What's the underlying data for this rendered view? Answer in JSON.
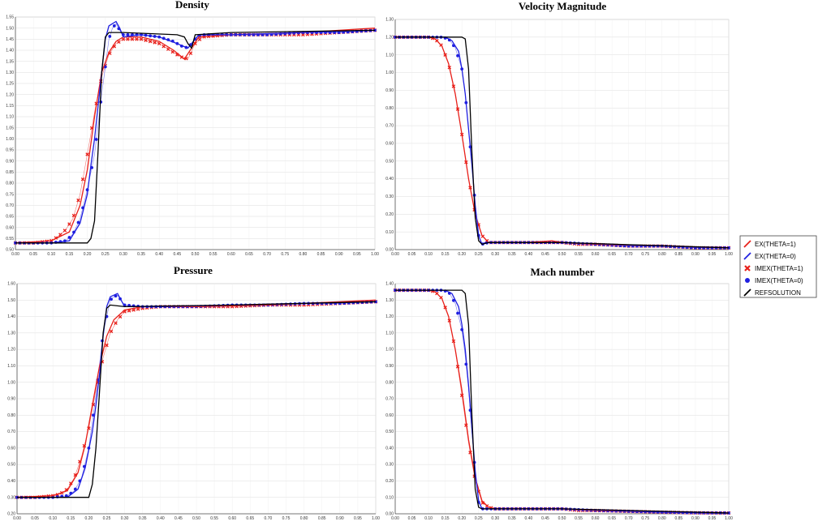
{
  "colors": {
    "EX(THETA=1)": "#e8201a",
    "EX(THETA=0)": "#1f1fe0",
    "IMEX(THETA=1)": "#e8201a",
    "IMEX(THETA=0)": "#1f1fe0",
    "REFSOLUTION": "#000000"
  },
  "legend": {
    "placement": "right",
    "entries": [
      {
        "label": "EX(THETA=1)",
        "icon": "red-slash-icon"
      },
      {
        "label": "EX(THETA=0)",
        "icon": "blue-slash-icon"
      },
      {
        "label": "IMEX(THETA=1)",
        "icon": "red-cross-marker-icon"
      },
      {
        "label": "IMEX(THETA=0)",
        "icon": "blue-dot-marker-icon"
      },
      {
        "label": "REFSOLUTION",
        "icon": "black-slash-icon"
      }
    ]
  },
  "chart_data": [
    {
      "type": "line",
      "title": "Density",
      "xlim": [
        0,
        1
      ],
      "ylim": [
        0.5,
        1.55
      ],
      "xticks": [
        "0.00",
        "0.05",
        "0.10",
        "0.15",
        "0.20",
        "0.25",
        "0.30",
        "0.35",
        "0.40",
        "0.45",
        "0.50",
        "0.55",
        "0.60",
        "0.65",
        "0.70",
        "0.75",
        "0.80",
        "0.85",
        "0.90",
        "0.95",
        "1.00"
      ],
      "yticks": [
        "0.50",
        "0.55",
        "0.60",
        "0.65",
        "0.70",
        "0.75",
        "0.80",
        "0.85",
        "0.90",
        "0.95",
        "1.00",
        "1.05",
        "1.10",
        "1.15",
        "1.20",
        "1.25",
        "1.30",
        "1.35",
        "1.40",
        "1.45",
        "1.50",
        "1.55"
      ],
      "grid": true,
      "series": [
        {
          "name": "EX(THETA=1)",
          "x": [
            0,
            0.1,
            0.15,
            0.18,
            0.2,
            0.22,
            0.24,
            0.26,
            0.28,
            0.3,
            0.35,
            0.4,
            0.44,
            0.47,
            0.49,
            0.51,
            0.6,
            0.8,
            1.0
          ],
          "y": [
            0.53,
            0.54,
            0.58,
            0.7,
            0.86,
            1.1,
            1.3,
            1.39,
            1.44,
            1.46,
            1.46,
            1.44,
            1.4,
            1.36,
            1.41,
            1.46,
            1.47,
            1.48,
            1.5
          ]
        },
        {
          "name": "EX(THETA=0)",
          "x": [
            0,
            0.1,
            0.15,
            0.18,
            0.2,
            0.21,
            0.22,
            0.23,
            0.24,
            0.25,
            0.26,
            0.27,
            0.28,
            0.29,
            0.3,
            0.35,
            0.4,
            0.45,
            0.48,
            0.5,
            0.51,
            0.6,
            0.8,
            1.0
          ],
          "y": [
            0.53,
            0.53,
            0.54,
            0.62,
            0.75,
            0.88,
            1.0,
            1.15,
            1.3,
            1.45,
            1.51,
            1.52,
            1.53,
            1.5,
            1.46,
            1.47,
            1.46,
            1.43,
            1.41,
            1.45,
            1.47,
            1.47,
            1.48,
            1.49
          ]
        },
        {
          "name": "IMEX(THETA=1)",
          "x": [
            0,
            0.05,
            0.1,
            0.12,
            0.14,
            0.16,
            0.18,
            0.2,
            0.22,
            0.24,
            0.26,
            0.28,
            0.3,
            0.35,
            0.4,
            0.42,
            0.44,
            0.46,
            0.48,
            0.5,
            0.52,
            0.6,
            0.7,
            0.8,
            0.9,
            1.0
          ],
          "y": [
            0.53,
            0.53,
            0.54,
            0.56,
            0.59,
            0.64,
            0.75,
            0.93,
            1.12,
            1.28,
            1.38,
            1.43,
            1.45,
            1.45,
            1.43,
            1.41,
            1.39,
            1.37,
            1.36,
            1.43,
            1.46,
            1.47,
            1.47,
            1.47,
            1.48,
            1.49
          ]
        },
        {
          "name": "IMEX(THETA=0)",
          "x": [
            0,
            0.05,
            0.1,
            0.14,
            0.16,
            0.18,
            0.2,
            0.22,
            0.24,
            0.26,
            0.27,
            0.28,
            0.29,
            0.3,
            0.35,
            0.4,
            0.44,
            0.46,
            0.48,
            0.5,
            0.52,
            0.6,
            0.7,
            0.8,
            0.9,
            1.0
          ],
          "y": [
            0.53,
            0.53,
            0.53,
            0.54,
            0.57,
            0.64,
            0.77,
            0.93,
            1.2,
            1.45,
            1.5,
            1.52,
            1.49,
            1.47,
            1.47,
            1.46,
            1.44,
            1.42,
            1.41,
            1.45,
            1.47,
            1.47,
            1.47,
            1.48,
            1.48,
            1.49
          ]
        },
        {
          "name": "REFSOLUTION",
          "x": [
            0,
            0.2,
            0.21,
            0.22,
            0.23,
            0.24,
            0.25,
            0.26,
            0.3,
            0.45,
            0.47,
            0.48,
            0.49,
            0.5,
            0.6,
            1.0
          ],
          "y": [
            0.53,
            0.53,
            0.55,
            0.63,
            0.95,
            1.3,
            1.46,
            1.48,
            1.48,
            1.47,
            1.46,
            1.43,
            1.41,
            1.47,
            1.48,
            1.49
          ]
        }
      ]
    },
    {
      "type": "line",
      "title": "Velocity Magnitude",
      "xlim": [
        0,
        1
      ],
      "ylim": [
        0,
        1.3
      ],
      "xticks": [
        "0.00",
        "0.05",
        "0.10",
        "0.15",
        "0.20",
        "0.25",
        "0.30",
        "0.35",
        "0.40",
        "0.45",
        "0.50",
        "0.55",
        "0.60",
        "0.65",
        "0.70",
        "0.75",
        "0.80",
        "0.85",
        "0.90",
        "0.95",
        "1.00"
      ],
      "yticks": [
        "0.00",
        "0.10",
        "0.20",
        "0.30",
        "0.40",
        "0.50",
        "0.60",
        "0.70",
        "0.80",
        "0.90",
        "1.00",
        "1.10",
        "1.20",
        "1.30"
      ],
      "grid": true,
      "series": [
        {
          "name": "EX(THETA=1)",
          "x": [
            0,
            0.1,
            0.12,
            0.14,
            0.16,
            0.18,
            0.2,
            0.22,
            0.24,
            0.26,
            0.28,
            0.3,
            0.4,
            0.47,
            0.5,
            0.6,
            0.8,
            1.0
          ],
          "y": [
            1.2,
            1.2,
            1.19,
            1.15,
            1.05,
            0.88,
            0.65,
            0.4,
            0.2,
            0.08,
            0.04,
            0.04,
            0.04,
            0.05,
            0.04,
            0.03,
            0.02,
            0.01
          ]
        },
        {
          "name": "EX(THETA=0)",
          "x": [
            0,
            0.15,
            0.17,
            0.19,
            0.2,
            0.21,
            0.22,
            0.23,
            0.24,
            0.25,
            0.26,
            0.27,
            0.3,
            0.4,
            0.5,
            0.8,
            1.0
          ],
          "y": [
            1.2,
            1.2,
            1.18,
            1.12,
            1.02,
            0.88,
            0.68,
            0.48,
            0.25,
            0.08,
            0.03,
            0.04,
            0.04,
            0.04,
            0.04,
            0.02,
            0.01
          ]
        },
        {
          "name": "IMEX(THETA=1)",
          "x": [
            0,
            0.05,
            0.1,
            0.12,
            0.14,
            0.16,
            0.18,
            0.2,
            0.22,
            0.24,
            0.26,
            0.28,
            0.3,
            0.35,
            0.4,
            0.45,
            0.5,
            0.55,
            0.6,
            0.7,
            0.8,
            0.9,
            1.0
          ],
          "y": [
            1.2,
            1.2,
            1.2,
            1.19,
            1.15,
            1.05,
            0.88,
            0.65,
            0.4,
            0.2,
            0.08,
            0.04,
            0.04,
            0.04,
            0.04,
            0.04,
            0.04,
            0.03,
            0.03,
            0.02,
            0.02,
            0.01,
            0.01
          ]
        },
        {
          "name": "IMEX(THETA=0)",
          "x": [
            0,
            0.05,
            0.1,
            0.14,
            0.16,
            0.18,
            0.2,
            0.21,
            0.22,
            0.23,
            0.24,
            0.25,
            0.26,
            0.28,
            0.3,
            0.35,
            0.4,
            0.5,
            0.6,
            0.7,
            0.8,
            0.9,
            1.0
          ],
          "y": [
            1.2,
            1.2,
            1.2,
            1.2,
            1.19,
            1.14,
            1.02,
            0.88,
            0.68,
            0.48,
            0.25,
            0.08,
            0.03,
            0.04,
            0.04,
            0.04,
            0.04,
            0.04,
            0.03,
            0.02,
            0.02,
            0.01,
            0.01
          ]
        },
        {
          "name": "REFSOLUTION",
          "x": [
            0,
            0.2,
            0.21,
            0.22,
            0.23,
            0.24,
            0.25,
            0.26,
            0.28,
            0.3,
            0.5,
            1.0
          ],
          "y": [
            1.2,
            1.2,
            1.19,
            1.02,
            0.55,
            0.18,
            0.05,
            0.03,
            0.04,
            0.04,
            0.04,
            0.01
          ]
        }
      ]
    },
    {
      "type": "line",
      "title": "Pressure",
      "xlim": [
        0,
        1
      ],
      "ylim": [
        0.2,
        1.6
      ],
      "xticks": [
        "0.00",
        "0.05",
        "0.10",
        "0.15",
        "0.20",
        "0.25",
        "0.30",
        "0.35",
        "0.40",
        "0.45",
        "0.50",
        "0.55",
        "0.60",
        "0.65",
        "0.70",
        "0.75",
        "0.80",
        "0.85",
        "0.90",
        "0.95",
        "1.00"
      ],
      "yticks": [
        "0.20",
        "0.30",
        "0.40",
        "0.50",
        "0.60",
        "0.70",
        "0.80",
        "0.90",
        "1.00",
        "1.10",
        "1.20",
        "1.30",
        "1.40",
        "1.50",
        "1.60"
      ],
      "grid": true,
      "series": [
        {
          "name": "EX(THETA=1)",
          "x": [
            0,
            0.1,
            0.14,
            0.17,
            0.19,
            0.21,
            0.23,
            0.25,
            0.27,
            0.3,
            0.35,
            0.5,
            0.7,
            1.0
          ],
          "y": [
            0.3,
            0.31,
            0.34,
            0.45,
            0.62,
            0.86,
            1.1,
            1.28,
            1.38,
            1.44,
            1.46,
            1.46,
            1.47,
            1.5
          ]
        },
        {
          "name": "EX(THETA=0)",
          "x": [
            0,
            0.14,
            0.17,
            0.19,
            0.21,
            0.22,
            0.23,
            0.24,
            0.25,
            0.26,
            0.27,
            0.28,
            0.29,
            0.3,
            0.4,
            0.6,
            1.0
          ],
          "y": [
            0.3,
            0.3,
            0.35,
            0.48,
            0.7,
            0.86,
            1.05,
            1.28,
            1.46,
            1.52,
            1.53,
            1.54,
            1.5,
            1.46,
            1.46,
            1.47,
            1.49
          ]
        },
        {
          "name": "IMEX(THETA=1)",
          "x": [
            0,
            0.05,
            0.1,
            0.12,
            0.14,
            0.16,
            0.18,
            0.2,
            0.22,
            0.24,
            0.26,
            0.28,
            0.3,
            0.35,
            0.4,
            0.5,
            0.6,
            0.7,
            0.8,
            0.9,
            1.0
          ],
          "y": [
            0.3,
            0.3,
            0.31,
            0.32,
            0.35,
            0.42,
            0.55,
            0.72,
            0.95,
            1.15,
            1.3,
            1.38,
            1.43,
            1.45,
            1.46,
            1.46,
            1.46,
            1.47,
            1.47,
            1.48,
            1.49
          ]
        },
        {
          "name": "IMEX(THETA=0)",
          "x": [
            0,
            0.05,
            0.1,
            0.14,
            0.16,
            0.18,
            0.2,
            0.22,
            0.24,
            0.26,
            0.27,
            0.28,
            0.29,
            0.3,
            0.35,
            0.4,
            0.5,
            0.6,
            0.7,
            0.8,
            0.9,
            1.0
          ],
          "y": [
            0.3,
            0.3,
            0.3,
            0.31,
            0.34,
            0.42,
            0.6,
            0.92,
            1.3,
            1.5,
            1.52,
            1.53,
            1.5,
            1.47,
            1.46,
            1.46,
            1.46,
            1.47,
            1.47,
            1.48,
            1.48,
            1.49
          ]
        },
        {
          "name": "REFSOLUTION",
          "x": [
            0,
            0.2,
            0.21,
            0.22,
            0.23,
            0.24,
            0.25,
            0.26,
            0.3,
            0.6,
            1.0
          ],
          "y": [
            0.3,
            0.3,
            0.38,
            0.6,
            0.95,
            1.3,
            1.45,
            1.47,
            1.46,
            1.47,
            1.49
          ]
        }
      ]
    },
    {
      "type": "line",
      "title": "Mach number",
      "xlim": [
        0,
        1
      ],
      "ylim": [
        0,
        1.4
      ],
      "xticks": [
        "0.00",
        "0.05",
        "0.10",
        "0.15",
        "0.20",
        "0.25",
        "0.30",
        "0.35",
        "0.40",
        "0.45",
        "0.50",
        "0.55",
        "0.60",
        "0.65",
        "0.70",
        "0.75",
        "0.80",
        "0.85",
        "0.90",
        "0.95",
        "1.00"
      ],
      "yticks": [
        "0.00",
        "0.10",
        "0.20",
        "0.30",
        "0.40",
        "0.50",
        "0.60",
        "0.70",
        "0.80",
        "0.90",
        "1.00",
        "1.10",
        "1.20",
        "1.30",
        "1.40"
      ],
      "grid": true,
      "series": [
        {
          "name": "EX(THETA=1)",
          "x": [
            0,
            0.1,
            0.12,
            0.14,
            0.16,
            0.18,
            0.2,
            0.22,
            0.24,
            0.26,
            0.28,
            0.3,
            0.4,
            0.47,
            0.5,
            0.6,
            0.8,
            1.0
          ],
          "y": [
            1.36,
            1.36,
            1.35,
            1.31,
            1.2,
            1.0,
            0.75,
            0.45,
            0.22,
            0.08,
            0.04,
            0.03,
            0.03,
            0.03,
            0.03,
            0.02,
            0.01,
            0.005
          ]
        },
        {
          "name": "EX(THETA=0)",
          "x": [
            0,
            0.15,
            0.17,
            0.19,
            0.2,
            0.21,
            0.22,
            0.23,
            0.24,
            0.25,
            0.26,
            0.27,
            0.3,
            0.5,
            0.8,
            1.0
          ],
          "y": [
            1.36,
            1.36,
            1.34,
            1.26,
            1.15,
            1.0,
            0.78,
            0.52,
            0.26,
            0.08,
            0.03,
            0.03,
            0.03,
            0.03,
            0.01,
            0.005
          ]
        },
        {
          "name": "IMEX(THETA=1)",
          "x": [
            0,
            0.05,
            0.1,
            0.12,
            0.14,
            0.16,
            0.18,
            0.2,
            0.22,
            0.24,
            0.26,
            0.28,
            0.3,
            0.35,
            0.4,
            0.45,
            0.5,
            0.55,
            0.6,
            0.7,
            0.8,
            0.9,
            1.0
          ],
          "y": [
            1.36,
            1.36,
            1.36,
            1.35,
            1.31,
            1.2,
            1.0,
            0.72,
            0.43,
            0.2,
            0.07,
            0.04,
            0.03,
            0.03,
            0.03,
            0.03,
            0.03,
            0.02,
            0.02,
            0.015,
            0.01,
            0.006,
            0.005
          ]
        },
        {
          "name": "IMEX(THETA=0)",
          "x": [
            0,
            0.05,
            0.1,
            0.14,
            0.16,
            0.18,
            0.2,
            0.21,
            0.22,
            0.23,
            0.24,
            0.25,
            0.26,
            0.28,
            0.3,
            0.35,
            0.4,
            0.5,
            0.6,
            0.7,
            0.8,
            0.9,
            1.0
          ],
          "y": [
            1.36,
            1.36,
            1.36,
            1.36,
            1.35,
            1.28,
            1.12,
            0.96,
            0.76,
            0.5,
            0.25,
            0.07,
            0.03,
            0.03,
            0.03,
            0.03,
            0.03,
            0.03,
            0.02,
            0.015,
            0.01,
            0.006,
            0.005
          ]
        },
        {
          "name": "REFSOLUTION",
          "x": [
            0,
            0.2,
            0.21,
            0.22,
            0.23,
            0.24,
            0.25,
            0.26,
            0.28,
            0.3,
            0.5,
            1.0
          ],
          "y": [
            1.36,
            1.36,
            1.34,
            1.15,
            0.6,
            0.15,
            0.04,
            0.03,
            0.03,
            0.03,
            0.03,
            0.005
          ]
        }
      ]
    }
  ]
}
